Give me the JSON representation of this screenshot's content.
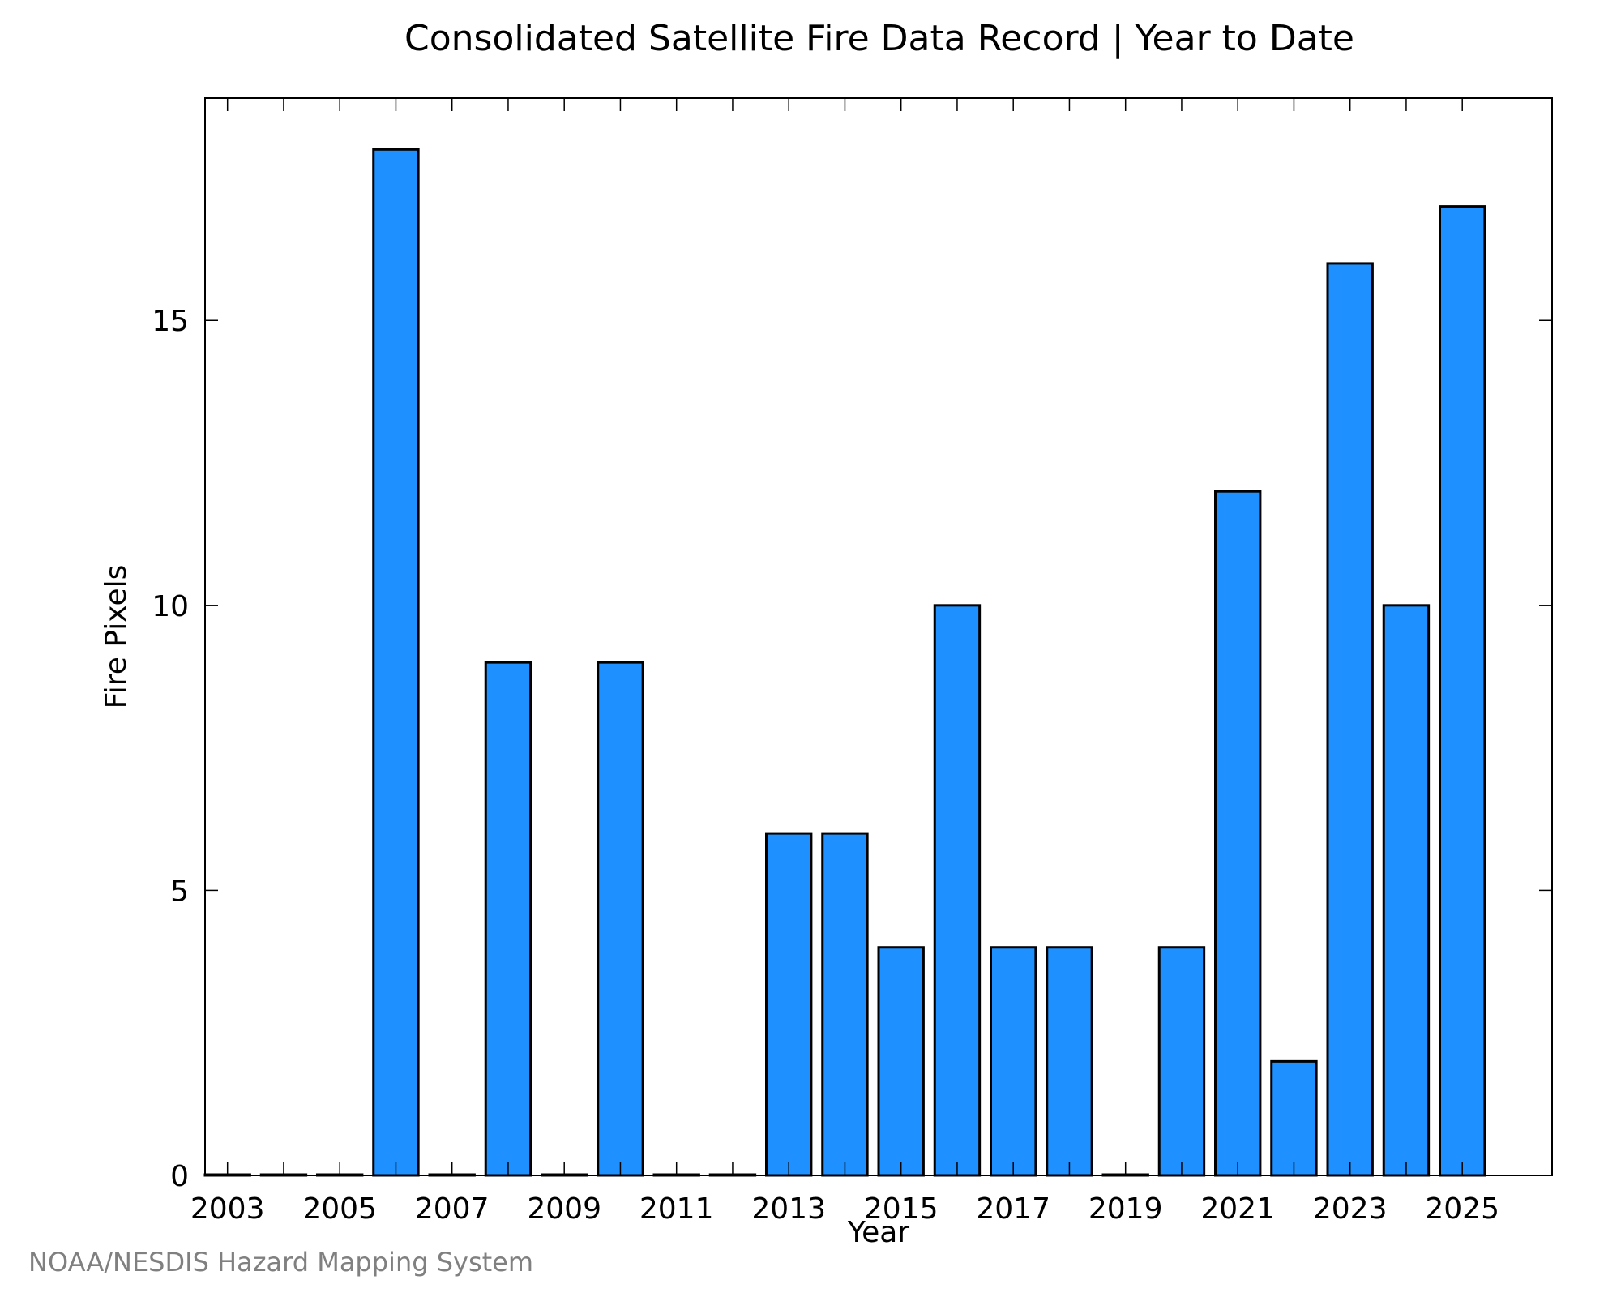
{
  "credit": "NOAA/NESDIS Hazard Mapping System",
  "colors": {
    "bar_fill": "#1e90ff",
    "bar_stroke": "#000000",
    "frame": "#000000",
    "credit": "#808080"
  },
  "chart_data": {
    "type": "bar",
    "title": "Consolidated Satellite Fire Data Record | Year to Date",
    "xlabel": "Year",
    "ylabel": "Fire Pixels",
    "categories": [
      "2003",
      "2004",
      "2005",
      "2006",
      "2007",
      "2008",
      "2009",
      "2010",
      "2011",
      "2012",
      "2013",
      "2014",
      "2015",
      "2016",
      "2017",
      "2018",
      "2019",
      "2020",
      "2021",
      "2022",
      "2023",
      "2024",
      "2025"
    ],
    "values": [
      0,
      0,
      0,
      18,
      0,
      9,
      0,
      9,
      0,
      0,
      6,
      6,
      4,
      10,
      4,
      4,
      0,
      4,
      12,
      2,
      16,
      10,
      17
    ],
    "x_tick_labels": [
      "2003",
      "2005",
      "2007",
      "2009",
      "2011",
      "2013",
      "2015",
      "2017",
      "2019",
      "2021",
      "2023",
      "2025"
    ],
    "y_ticks": [
      0,
      5,
      10,
      15
    ],
    "ylim": [
      0,
      18.9
    ],
    "xlim": [
      2002.6,
      2026.6
    ],
    "grid": false
  }
}
